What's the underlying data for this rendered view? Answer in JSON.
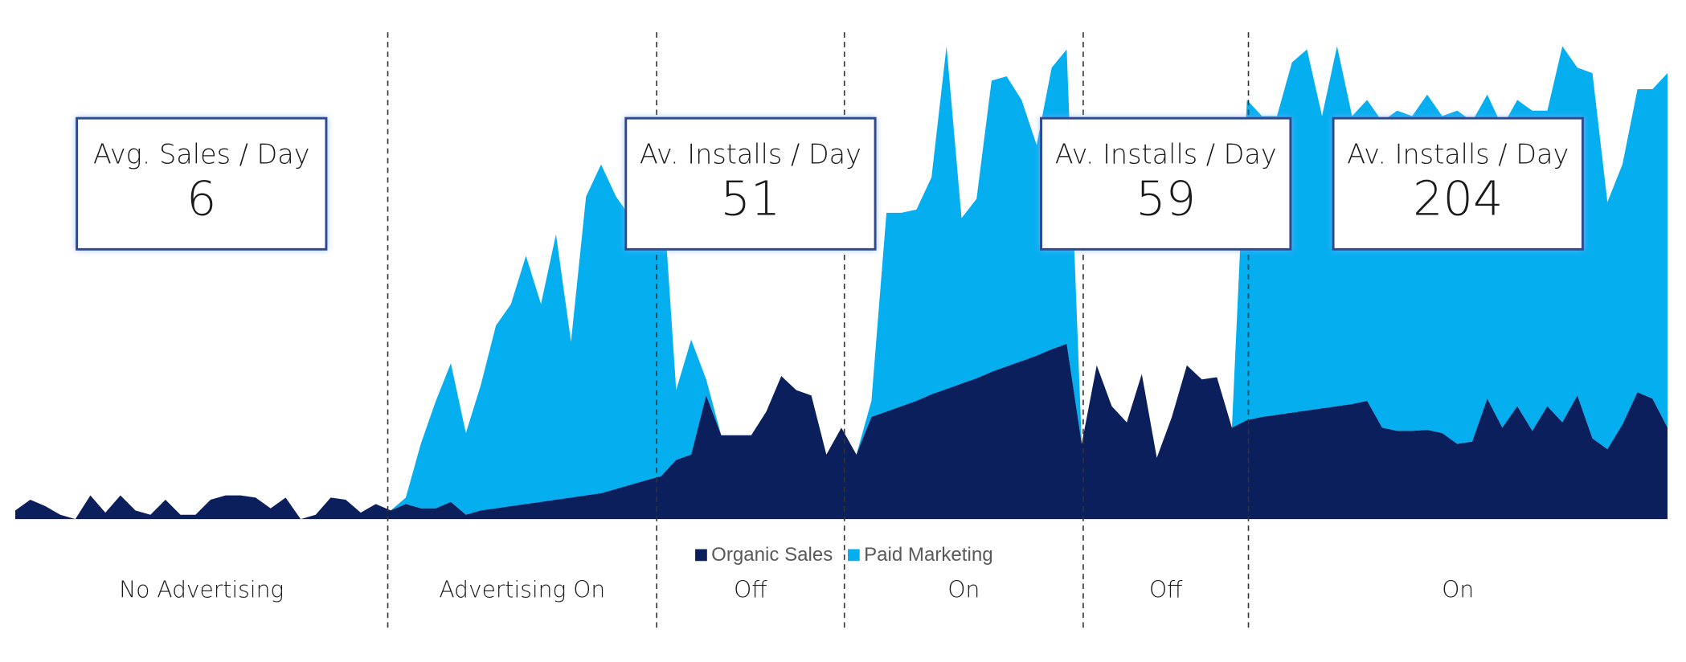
{
  "chart_data": {
    "type": "stacked-area",
    "series": [
      {
        "name": "Organic Sales",
        "color": "#0b1f5c",
        "values": [
          8,
          18,
          12,
          4,
          0,
          22,
          6,
          22,
          8,
          4,
          18,
          4,
          4,
          18,
          22,
          22,
          20,
          10,
          20,
          0,
          4,
          20,
          18,
          6,
          14,
          8,
          14,
          10,
          10,
          16,
          4,
          8,
          10,
          12,
          14,
          16,
          18,
          20,
          22,
          24,
          28,
          32,
          36,
          40,
          55,
          60,
          115,
          78,
          78,
          78,
          100,
          133,
          120,
          115,
          60,
          85,
          60,
          95,
          100,
          105,
          110,
          116,
          121,
          126,
          131,
          137,
          142,
          147,
          152,
          158,
          163,
          70,
          143,
          105,
          90,
          135,
          57,
          95,
          143,
          130,
          132,
          85,
          92,
          95,
          97,
          99,
          101,
          103,
          105,
          107,
          110,
          85,
          82,
          82,
          83,
          80,
          70,
          72,
          112,
          85,
          105,
          82,
          105,
          90,
          115,
          75,
          65,
          88,
          118,
          112,
          85
        ]
      },
      {
        "name": "Paid Marketing",
        "color": "#05aeef",
        "values": [
          0,
          0,
          0,
          0,
          0,
          0,
          0,
          0,
          0,
          0,
          0,
          0,
          0,
          0,
          0,
          0,
          0,
          0,
          0,
          0,
          0,
          0,
          0,
          0,
          0,
          0,
          6,
          60,
          100,
          129,
          76,
          117,
          170,
          188,
          231,
          184,
          247,
          145,
          278,
          306,
          272,
          248,
          264,
          290,
          65,
          107,
          15,
          0,
          0,
          0,
          0,
          0,
          0,
          0,
          0,
          0,
          0,
          15,
          185,
          180,
          178,
          202,
          319,
          154,
          167,
          271,
          270,
          243,
          196,
          262,
          274,
          0,
          0,
          0,
          0,
          0,
          0,
          0,
          0,
          0,
          0,
          0,
          298,
          280,
          278,
          326,
          336,
          272,
          335,
          268,
          280,
          285,
          298,
          293,
          312,
          295,
          310,
          298,
          283,
          280,
          285,
          298,
          275,
          350,
          305,
          340,
          230,
          242,
          282,
          288,
          330
        ]
      }
    ],
    "phases": [
      {
        "label": "No Advertising",
        "start": 0,
        "end": 24.8,
        "box": {
          "title": "Avg. Sales / Day",
          "value": 6
        }
      },
      {
        "label": "Advertising On",
        "start": 24.8,
        "end": 42.7
      },
      {
        "label": "Off",
        "start": 42.7,
        "end": 55.2,
        "box": {
          "title": "Av. Installs / Day",
          "value": 51
        }
      },
      {
        "label": "On",
        "start": 55.2,
        "end": 71.1
      },
      {
        "label": "Off",
        "start": 71.1,
        "end": 82.1,
        "box": {
          "title": "Av. Installs / Day",
          "value": 59
        }
      },
      {
        "label": "On",
        "start": 82.1,
        "end": 110,
        "box": {
          "title": "Av. Installs / Day",
          "value": 204
        }
      }
    ]
  }
}
